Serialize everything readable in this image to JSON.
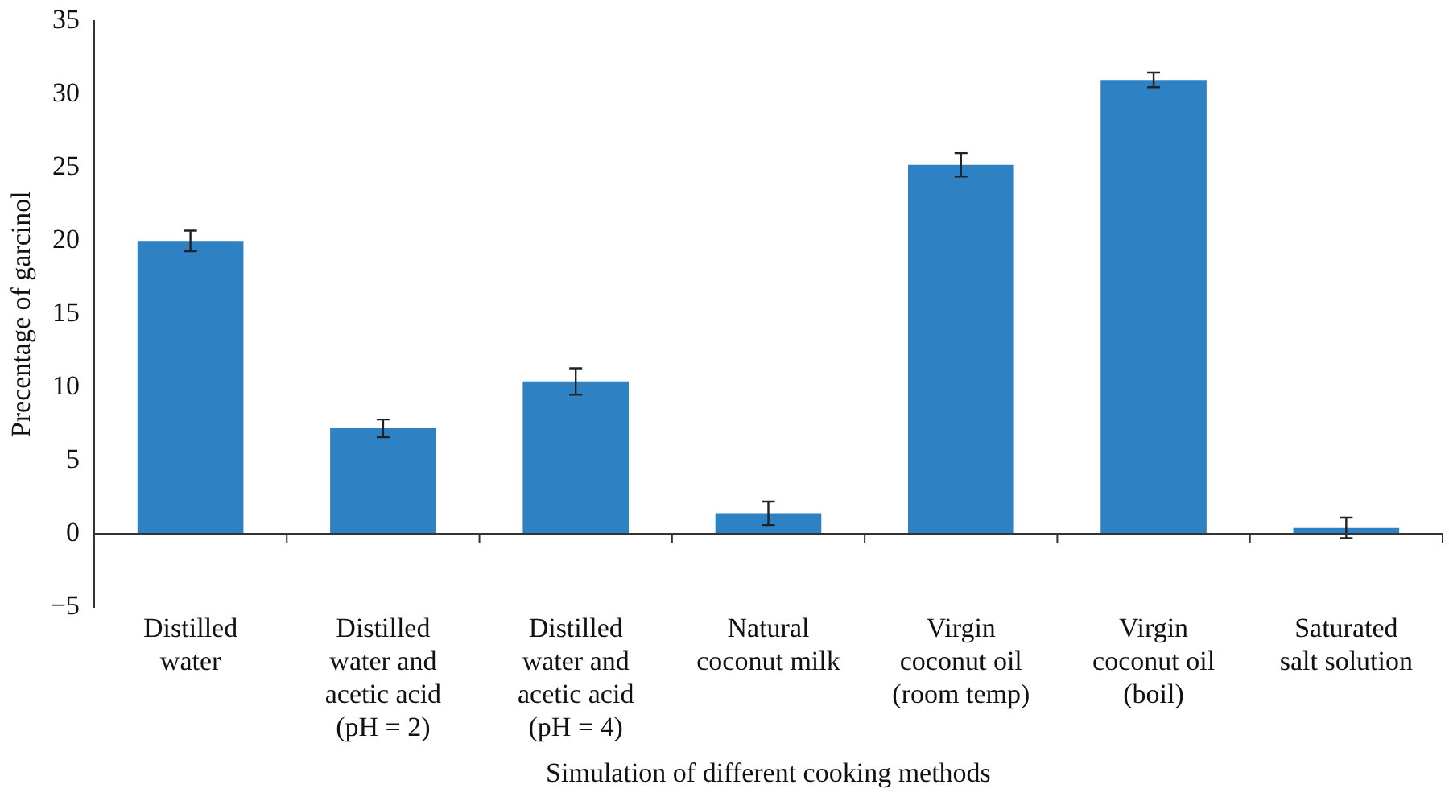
{
  "chart_data": {
    "type": "bar",
    "xlabel": "Simulation of different cooking methods",
    "ylabel": "Precentage of garcinol",
    "categories": [
      "Distilled water",
      "Distilled water and acetic acid (pH = 2)",
      "Distilled water and acetic acid (pH = 4)",
      "Natural coconut milk",
      "Virgin coconut oil (room temp)",
      "Virgin coconut oil (boil)",
      "Saturated salt solution"
    ],
    "values": [
      20,
      7.2,
      10.4,
      1.4,
      25.2,
      31,
      0.4
    ],
    "errors": [
      0.7,
      0.6,
      0.9,
      0.8,
      0.8,
      0.5,
      0.7
    ],
    "color": "#2e82c4",
    "ylim": [
      -5,
      35
    ],
    "yticks": [
      {
        "value": -5,
        "label": "−5"
      },
      0,
      5,
      10,
      15,
      20,
      25,
      30,
      35
    ],
    "legend": false
  }
}
